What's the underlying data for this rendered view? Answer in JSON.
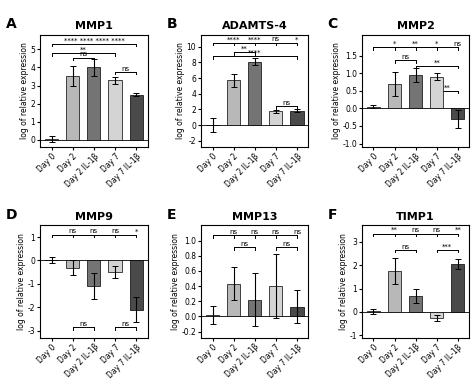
{
  "chart_data": [
    {
      "type": "bar",
      "panel_label": "A",
      "title": "MMP1",
      "categories": [
        "Day 0",
        "Day 2",
        "Day 2 IL-1β",
        "Day 7",
        "Day 7 IL-1β"
      ],
      "values": [
        0.05,
        3.55,
        4.0,
        3.3,
        2.5
      ],
      "errors": [
        0.15,
        0.55,
        0.45,
        0.2,
        0.1
      ],
      "colors": [
        "#b8b8b8",
        "#b8b8b8",
        "#747474",
        "#d4d4d4",
        "#4a4a4a"
      ],
      "ylim": [
        -0.4,
        5.8
      ],
      "yticks": [
        0,
        1,
        2,
        3,
        4,
        5
      ],
      "ylabel": "log of relative expression",
      "annotations": [
        {
          "text": "**** **** **** ****",
          "from": "Day 0",
          "to": "Day 7 IL-1β",
          "y": 5.3
        },
        {
          "text": "**",
          "from": "Day 0",
          "to": "Day 7",
          "y": 4.78
        },
        {
          "text": "ns",
          "from": "Day 2",
          "to": "Day 2 IL-1β",
          "y": 4.55
        },
        {
          "text": "ns",
          "from": "Day 7",
          "to": "Day 7 IL-1β",
          "y": 3.75
        }
      ]
    },
    {
      "type": "bar",
      "panel_label": "B",
      "title": "ADAMTS-4",
      "categories": [
        "Day 0",
        "Day 2",
        "Day 2 IL-1β",
        "Day 7",
        "Day 7 IL-1β"
      ],
      "values": [
        0.05,
        5.7,
        8.1,
        1.75,
        1.85
      ],
      "errors": [
        0.9,
        0.8,
        0.4,
        0.15,
        0.2
      ],
      "colors": [
        "#b8b8b8",
        "#b8b8b8",
        "#747474",
        "#d4d4d4",
        "#4a4a4a"
      ],
      "ylim": [
        -2.8,
        11.5
      ],
      "yticks": [
        -2,
        0,
        2,
        4,
        6,
        8,
        10
      ],
      "ylabel": "log of relative expression",
      "annotations": [
        {
          "text": "****",
          "from": "Day 0",
          "to": "Day 2",
          "y": 10.5
        },
        {
          "text": "****",
          "from": "Day 0",
          "to": "Day 2 IL-1β",
          "y": 10.5
        },
        {
          "text": "ns",
          "from": "Day 0",
          "to": "Day 7",
          "y": 10.5
        },
        {
          "text": "*",
          "from": "Day 0",
          "to": "Day 7 IL-1β",
          "y": 10.5
        },
        {
          "text": "**",
          "from": "Day 2",
          "to": "Day 2 IL-1β",
          "y": 9.3
        },
        {
          "text": "****",
          "from": "Day 0",
          "to": "Day 7 IL-1β",
          "y": 8.8
        },
        {
          "text": "ns",
          "from": "Day 7",
          "to": "Day 7 IL-1β",
          "y": 2.4
        }
      ]
    },
    {
      "type": "bar",
      "panel_label": "C",
      "title": "MMP2",
      "categories": [
        "Day 0",
        "Day 2",
        "Day 2 IL-1β",
        "Day 7",
        "Day 7 IL-1β"
      ],
      "values": [
        0.05,
        0.7,
        0.95,
        0.9,
        -0.3
      ],
      "errors": [
        0.05,
        0.35,
        0.2,
        0.1,
        0.25
      ],
      "colors": [
        "#b8b8b8",
        "#b8b8b8",
        "#747474",
        "#d4d4d4",
        "#4a4a4a"
      ],
      "ylim": [
        -1.1,
        2.1
      ],
      "yticks": [
        -1.0,
        -0.5,
        0.0,
        0.5,
        1.0,
        1.5
      ],
      "ylabel": "log of relative expression",
      "annotations": [
        {
          "text": "*",
          "from": "Day 0",
          "to": "Day 2",
          "y": 1.75
        },
        {
          "text": "**",
          "from": "Day 0",
          "to": "Day 2 IL-1β",
          "y": 1.75
        },
        {
          "text": "*",
          "from": "Day 0",
          "to": "Day 7",
          "y": 1.75
        },
        {
          "text": "ns",
          "from": "Day 0",
          "to": "Day 7 IL-1β",
          "y": 1.75
        },
        {
          "text": "ns",
          "from": "Day 2",
          "to": "Day 2 IL-1β",
          "y": 1.38
        },
        {
          "text": "**",
          "from": "Day 2 IL-1β",
          "to": "Day 7 IL-1β",
          "y": 1.22
        },
        {
          "text": "**",
          "from": "Day 7",
          "to": "Day 7 IL-1β",
          "y": 0.5
        }
      ]
    },
    {
      "type": "bar",
      "panel_label": "D",
      "title": "MMP9",
      "categories": [
        "Day 0",
        "Day 2",
        "Day 2 IL-1β",
        "Day 7",
        "Day 7 IL-1β"
      ],
      "values": [
        0.02,
        -0.3,
        -1.1,
        -0.5,
        -2.1
      ],
      "errors": [
        0.12,
        0.3,
        0.55,
        0.25,
        0.55
      ],
      "colors": [
        "#b8b8b8",
        "#b8b8b8",
        "#747474",
        "#d4d4d4",
        "#4a4a4a"
      ],
      "ylim": [
        -3.3,
        1.5
      ],
      "yticks": [
        -3,
        -2,
        -1,
        0,
        1
      ],
      "ylabel": "log of relative expression",
      "annotations": [
        {
          "text": "ns",
          "from": "Day 0",
          "to": "Day 2",
          "y": 1.1
        },
        {
          "text": "ns",
          "from": "Day 0",
          "to": "Day 2 IL-1β",
          "y": 1.1
        },
        {
          "text": "ns",
          "from": "Day 0",
          "to": "Day 7",
          "y": 1.1
        },
        {
          "text": "*",
          "from": "Day 0",
          "to": "Day 7 IL-1β",
          "y": 1.1
        },
        {
          "text": "ns",
          "from": "Day 2",
          "to": "Day 2 IL-1β",
          "y": -2.85
        },
        {
          "text": "ns",
          "from": "Day 7",
          "to": "Day 7 IL-1β",
          "y": -2.85
        }
      ]
    },
    {
      "type": "bar",
      "panel_label": "E",
      "title": "MMP13",
      "categories": [
        "Day 0",
        "Day 2",
        "Day 2 IL-1β",
        "Day 7",
        "Day 7 IL-1β"
      ],
      "values": [
        0.02,
        0.43,
        0.22,
        0.4,
        0.13
      ],
      "errors": [
        0.12,
        0.22,
        0.35,
        0.42,
        0.22
      ],
      "colors": [
        "#b8b8b8",
        "#b8b8b8",
        "#747474",
        "#d4d4d4",
        "#4a4a4a"
      ],
      "ylim": [
        -0.28,
        1.2
      ],
      "yticks": [
        -0.2,
        0.0,
        0.2,
        0.4,
        0.6,
        0.8,
        1.0
      ],
      "ylabel": "log of relative expression",
      "annotations": [
        {
          "text": "ns",
          "from": "Day 0",
          "to": "Day 2",
          "y": 1.07
        },
        {
          "text": "ns",
          "from": "Day 0",
          "to": "Day 2 IL-1β",
          "y": 1.07
        },
        {
          "text": "ns",
          "from": "Day 0",
          "to": "Day 7",
          "y": 1.07
        },
        {
          "text": "ns",
          "from": "Day 0",
          "to": "Day 7 IL-1β",
          "y": 1.07
        },
        {
          "text": "ns",
          "from": "Day 2",
          "to": "Day 2 IL-1β",
          "y": 0.91
        },
        {
          "text": "ns",
          "from": "Day 7",
          "to": "Day 7 IL-1β",
          "y": 0.91
        }
      ]
    },
    {
      "type": "bar",
      "panel_label": "F",
      "title": "TIMP1",
      "categories": [
        "Day 0",
        "Day 2",
        "Day 2 IL-1β",
        "Day 7",
        "Day 7 IL-1β"
      ],
      "values": [
        0.02,
        1.75,
        0.7,
        -0.25,
        2.05
      ],
      "errors": [
        0.12,
        0.55,
        0.3,
        0.12,
        0.22
      ],
      "colors": [
        "#b8b8b8",
        "#b8b8b8",
        "#747474",
        "#d4d4d4",
        "#4a4a4a"
      ],
      "ylim": [
        -1.1,
        3.7
      ],
      "yticks": [
        -1,
        0,
        1,
        2,
        3
      ],
      "ylabel": "log of relative expression",
      "annotations": [
        {
          "text": "**",
          "from": "Day 0",
          "to": "Day 2",
          "y": 3.35
        },
        {
          "text": "ns",
          "from": "Day 0",
          "to": "Day 2 IL-1β",
          "y": 3.35
        },
        {
          "text": "ns",
          "from": "Day 0",
          "to": "Day 7",
          "y": 3.35
        },
        {
          "text": "**",
          "from": "Day 0",
          "to": "Day 7 IL-1β",
          "y": 3.35
        },
        {
          "text": "ns",
          "from": "Day 2",
          "to": "Day 2 IL-1β",
          "y": 2.65
        },
        {
          "text": "***",
          "from": "Day 7",
          "to": "Day 7 IL-1β",
          "y": 2.65
        }
      ]
    }
  ]
}
